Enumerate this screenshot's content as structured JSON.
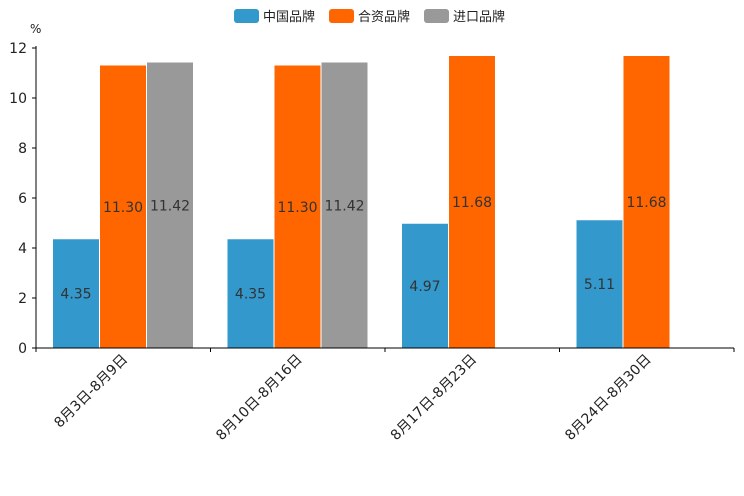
{
  "chart_data": {
    "type": "bar",
    "unit": "%",
    "categories": [
      "8月3日-8月9日",
      "8月10日-8月16日",
      "8月17日-8月23日",
      "8月24日-8月30日"
    ],
    "series": [
      {
        "name": "中国品牌",
        "color": "#3398cc",
        "values": [
          4.35,
          4.35,
          4.97,
          5.11
        ],
        "labels": [
          "4.35",
          "4.35",
          "4.97",
          "5.11"
        ]
      },
      {
        "name": "合资品牌",
        "color": "#ff6600",
        "values": [
          11.3,
          11.3,
          11.68,
          11.68
        ],
        "labels": [
          "11.30",
          "11.30",
          "11.68",
          "11.68"
        ]
      },
      {
        "name": "进口品牌",
        "color": "#999999",
        "values": [
          11.42,
          11.42,
          null,
          null
        ],
        "labels": [
          "11.42",
          "11.42",
          null,
          null
        ]
      }
    ],
    "ylim": [
      0,
      12
    ],
    "yticks": [
      0,
      2,
      4,
      6,
      8,
      10,
      12
    ],
    "legend_position": "top-center"
  }
}
